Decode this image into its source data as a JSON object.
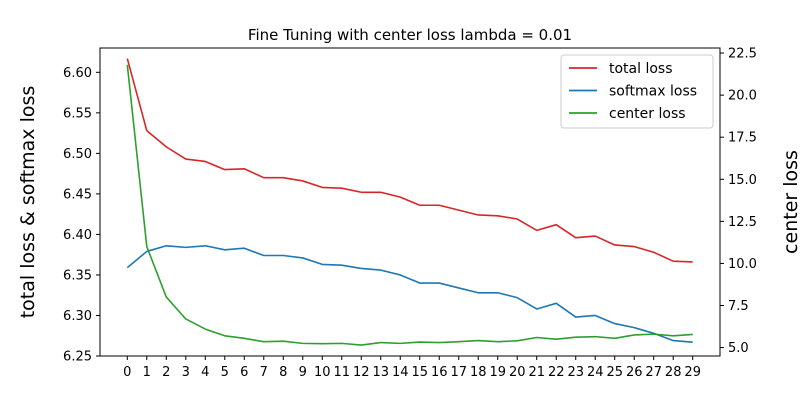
{
  "chart_data": {
    "type": "line",
    "title": "Fine Tuning with center loss lambda = 0.01",
    "xlabel": "",
    "ylabel": "total loss & softmax loss",
    "y2label": "center loss",
    "x": [
      0,
      1,
      2,
      3,
      4,
      5,
      6,
      7,
      8,
      9,
      10,
      11,
      12,
      13,
      14,
      15,
      16,
      17,
      18,
      19,
      20,
      21,
      22,
      23,
      24,
      25,
      26,
      27,
      28,
      29
    ],
    "ylim": [
      6.25,
      6.63
    ],
    "y2lim": [
      4.5,
      22.8
    ],
    "yticks": [
      6.25,
      6.3,
      6.35,
      6.4,
      6.45,
      6.5,
      6.55,
      6.6
    ],
    "ytick_labels": [
      "6.25",
      "6.30",
      "6.35",
      "6.40",
      "6.45",
      "6.50",
      "6.55",
      "6.60"
    ],
    "y2ticks": [
      5.0,
      7.5,
      10.0,
      12.5,
      15.0,
      17.5,
      20.0,
      22.5
    ],
    "y2tick_labels": [
      "5.0",
      "7.5",
      "10.0",
      "12.5",
      "15.0",
      "17.5",
      "20.0",
      "22.5"
    ],
    "grid": false,
    "legend_position": "top-right",
    "series": [
      {
        "name": "total loss",
        "axis": "left",
        "color": "#d62728",
        "values": [
          6.617,
          6.528,
          6.508,
          6.493,
          6.49,
          6.48,
          6.481,
          6.47,
          6.47,
          6.466,
          6.458,
          6.457,
          6.452,
          6.452,
          6.446,
          6.436,
          6.436,
          6.43,
          6.424,
          6.423,
          6.419,
          6.405,
          6.412,
          6.396,
          6.398,
          6.387,
          6.385,
          6.378,
          6.367,
          6.366
        ]
      },
      {
        "name": "softmax loss",
        "axis": "left",
        "color": "#1f77b4",
        "values": [
          6.359,
          6.379,
          6.386,
          6.384,
          6.386,
          6.381,
          6.383,
          6.374,
          6.374,
          6.371,
          6.363,
          6.362,
          6.358,
          6.356,
          6.35,
          6.34,
          6.34,
          6.334,
          6.328,
          6.328,
          6.322,
          6.308,
          6.315,
          6.298,
          6.3,
          6.29,
          6.285,
          6.278,
          6.269,
          6.267
        ]
      },
      {
        "name": "center loss",
        "axis": "right",
        "color": "#2ca02c",
        "values": [
          21.8,
          11.0,
          8.0,
          6.7,
          6.1,
          5.7,
          5.55,
          5.35,
          5.38,
          5.25,
          5.23,
          5.25,
          5.15,
          5.3,
          5.25,
          5.33,
          5.3,
          5.35,
          5.42,
          5.35,
          5.4,
          5.6,
          5.5,
          5.62,
          5.65,
          5.55,
          5.75,
          5.8,
          5.7,
          5.78
        ]
      }
    ]
  }
}
